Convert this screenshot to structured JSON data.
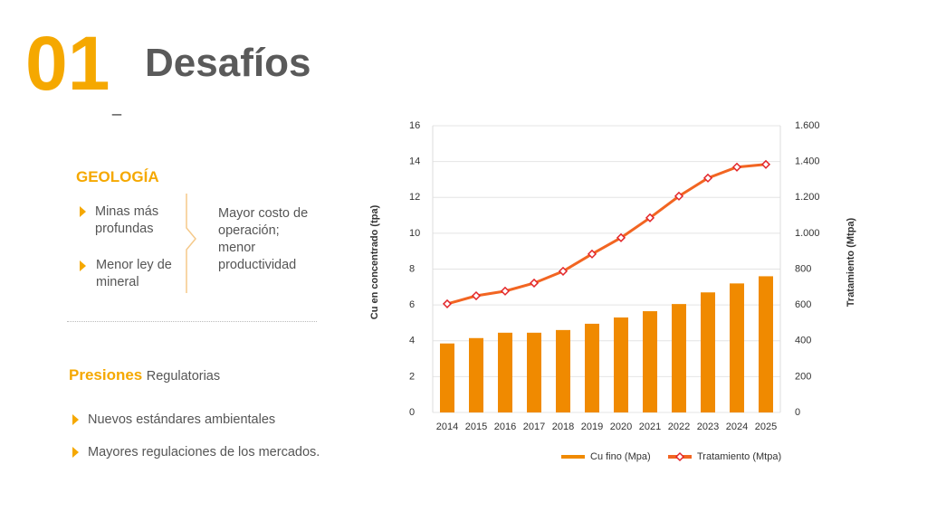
{
  "header": {
    "number": "01",
    "title": "Desafíos"
  },
  "geology": {
    "heading": "GEOLOGÍA",
    "causes": [
      "Minas más profundas",
      "Menor ley de mineral"
    ],
    "effect": "Mayor costo de operación; menor productividad"
  },
  "pressures": {
    "heading": "Presiones",
    "subheading": "Regulatorias",
    "items": [
      "Nuevos estándares ambientales",
      "Mayores regulaciones de los mercados."
    ]
  },
  "chart_data": {
    "type": "bar_line",
    "ylabel": "Cu en concentrado (tpa)",
    "y2label": "Tratamiento (Mtpa)",
    "categories": [
      "2014",
      "2015",
      "2016",
      "2017",
      "2018",
      "2019",
      "2020",
      "2021",
      "2022",
      "2023",
      "2024",
      "2025"
    ],
    "series": [
      {
        "name": "Cu fino (Mpa)",
        "color": "#f08a00",
        "type": "bar",
        "values": [
          3.85,
          4.15,
          4.45,
          4.45,
          4.6,
          4.95,
          5.3,
          5.65,
          6.05,
          6.7,
          7.2,
          7.6
        ]
      },
      {
        "name": "Tratamiento (Mtpa)",
        "color": "#f26522",
        "marker_color": "#e3262a",
        "type": "line",
        "axis": "y2",
        "values": [
          606,
          651,
          677,
          722,
          788,
          884,
          975,
          1086,
          1207,
          1308,
          1369,
          1384
        ]
      }
    ],
    "ylim": [
      0,
      16
    ],
    "yticks": [
      0,
      2,
      4,
      6,
      8,
      10,
      12,
      14,
      16
    ],
    "y2lim": [
      0,
      1600
    ],
    "y2ticks": [
      0,
      200,
      400,
      600,
      800,
      {
        "value": 1000,
        "label": "1.000"
      },
      {
        "value": 1200,
        "label": "1.200"
      },
      {
        "value": 1400,
        "label": "1.400"
      },
      {
        "value": 1600,
        "label": "1.600"
      }
    ],
    "grid": true,
    "legend": "bottom"
  }
}
